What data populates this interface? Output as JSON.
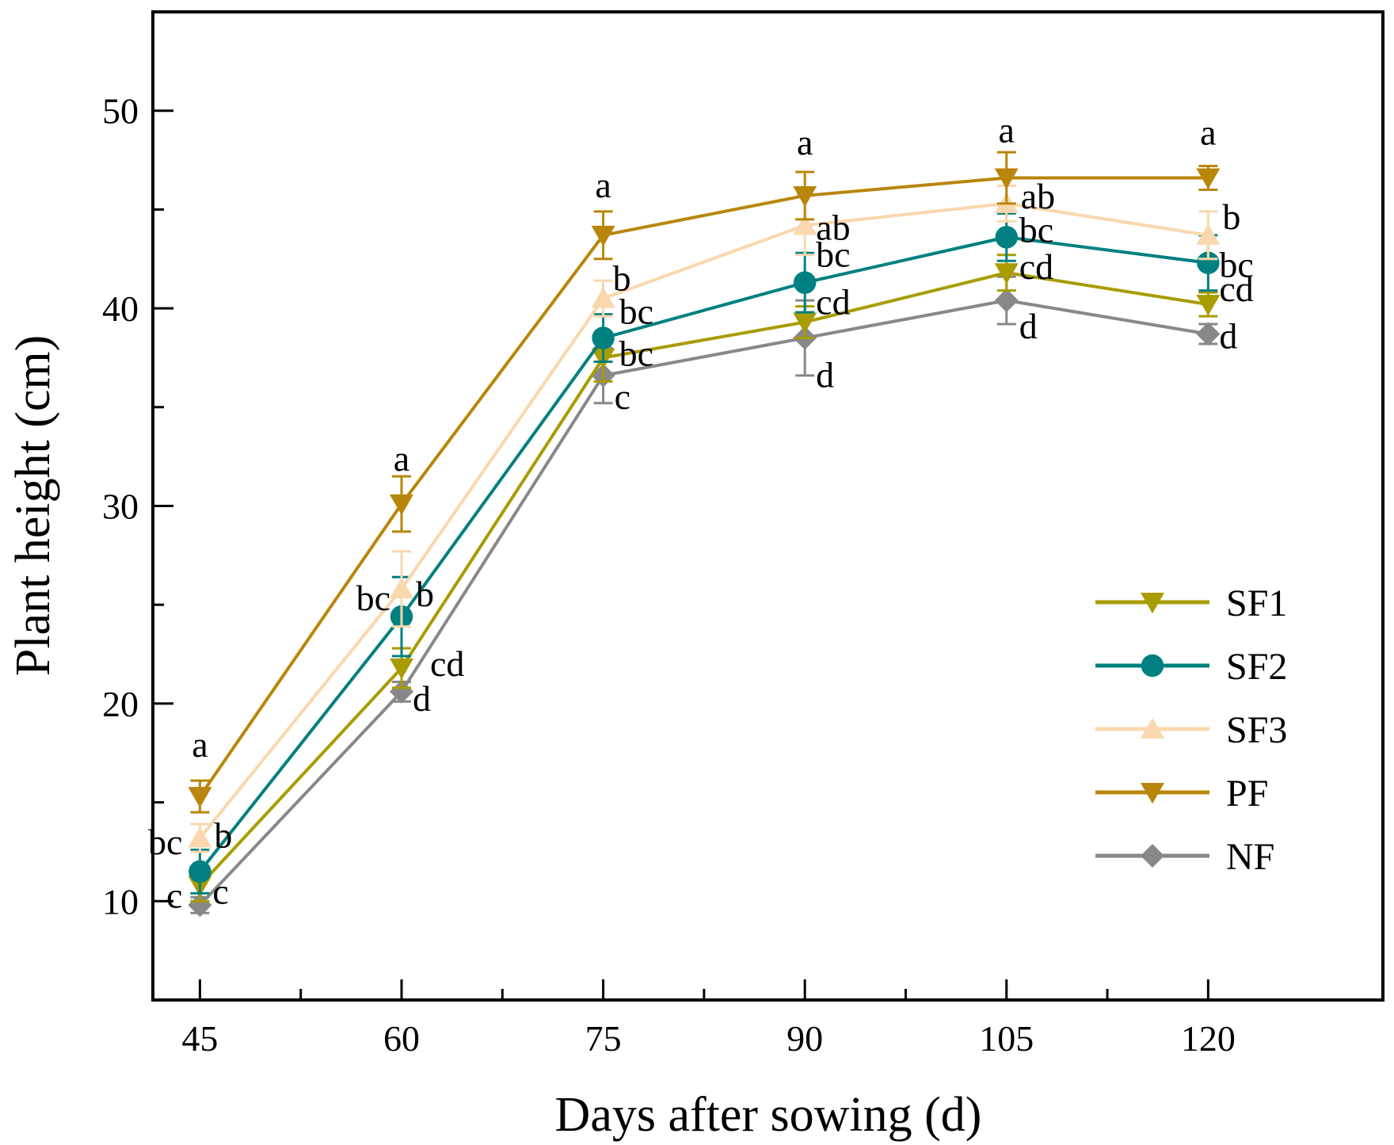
{
  "chart_data": {
    "type": "line",
    "xlabel": "Days after sowing (d)",
    "ylabel": "Plant height (cm)",
    "xlim": [
      41.5,
      133
    ],
    "ylim": [
      5,
      55
    ],
    "xticks": [
      45,
      60,
      75,
      90,
      105,
      120
    ],
    "xtick_labels": [
      "45",
      "60",
      "75",
      "90",
      "105",
      "120"
    ],
    "yticks": [
      10,
      20,
      30,
      40,
      50
    ],
    "ytick_labels": [
      "10",
      "20",
      "30",
      "40",
      "50"
    ],
    "legend_position": "bottom-right",
    "x": [
      45,
      60,
      75,
      90,
      105,
      120
    ],
    "series": [
      {
        "name": "SF1",
        "color": "#A89C00",
        "marker": "triangle-down",
        "values": [
          10.8,
          21.8,
          37.5,
          39.3,
          41.8,
          40.2
        ],
        "errors": [
          0.8,
          1.0,
          1.2,
          0.8,
          0.9,
          0.6
        ],
        "labels": [
          "c",
          "cd",
          "bc",
          "cd",
          "cd",
          "cd"
        ]
      },
      {
        "name": "SF2",
        "color": "#008080",
        "marker": "circle",
        "values": [
          11.5,
          24.4,
          38.5,
          41.3,
          43.6,
          42.3
        ],
        "errors": [
          1.1,
          2.0,
          1.2,
          1.5,
          1.2,
          1.4
        ],
        "labels": [
          "bc",
          "bc",
          "bc",
          "bc",
          "bc",
          "bc"
        ]
      },
      {
        "name": "SF3",
        "color": "#FAD7AE",
        "marker": "triangle-up",
        "values": [
          13.2,
          25.8,
          40.5,
          44.2,
          45.3,
          43.7
        ],
        "errors": [
          0.7,
          1.9,
          0.9,
          1.5,
          0.9,
          1.2
        ],
        "labels": [
          "b",
          "b",
          "b",
          "ab",
          "ab",
          "b"
        ]
      },
      {
        "name": "PF",
        "color": "#B8860B",
        "marker": "triangle-down",
        "values": [
          15.3,
          30.1,
          43.7,
          45.7,
          46.6,
          46.6
        ],
        "errors": [
          0.8,
          1.4,
          1.2,
          1.2,
          1.3,
          0.6
        ],
        "labels": [
          "a",
          "a",
          "a",
          "a",
          "a",
          "a"
        ]
      },
      {
        "name": "NF",
        "color": "#888888",
        "marker": "diamond",
        "values": [
          9.8,
          20.6,
          36.6,
          38.5,
          40.4,
          38.7
        ],
        "errors": [
          0.4,
          0.5,
          1.4,
          1.9,
          1.2,
          0.5
        ],
        "labels": [
          "c",
          "d",
          "c",
          "d",
          "d",
          "d"
        ]
      }
    ]
  }
}
